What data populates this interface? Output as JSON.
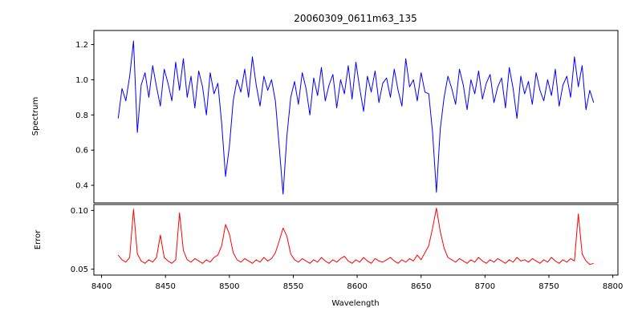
{
  "figure": {
    "title": "20060309_0611m63_135",
    "xlabel": "Wavelength",
    "top_ylabel": "Spectrum",
    "bottom_ylabel": "Error",
    "background_color": "#ffffff",
    "spine_color": "#000000",
    "spectrum_color": "#0000ff",
    "error_color": "#ff0000"
  },
  "chart_data": {
    "type": "line",
    "title": "20060309_0611m63_135",
    "xlabel": "Wavelength",
    "grid": false,
    "legend": "none",
    "x_start": 8413,
    "x_step": 3,
    "xlim": [
      8394,
      8804
    ],
    "x_ticks": [
      8400,
      8450,
      8500,
      8550,
      8600,
      8650,
      8700,
      8750,
      8800
    ],
    "x_tick_labels": [
      "8400",
      "8450",
      "8500",
      "8550",
      "8600",
      "8650",
      "8700",
      "8750",
      "8800"
    ],
    "panels": [
      {
        "ylabel": "Spectrum",
        "ylim": [
          0.3,
          1.28
        ],
        "y_ticks": [
          0.4,
          0.6,
          0.8,
          1.0,
          1.2
        ],
        "y_tick_labels": [
          "0.4",
          "0.6",
          "0.8",
          "1.0",
          "1.2"
        ],
        "notes": "noisy stellar spectrum near 1.0 with absorption lines at ~8498, ~8542, ~8662",
        "series": [
          {
            "name": "spectrum",
            "color": "#0000ff",
            "values": [
              0.78,
              0.95,
              0.88,
              1.02,
              1.22,
              0.7,
              0.97,
              1.04,
              0.9,
              1.08,
              0.96,
              0.85,
              1.06,
              0.98,
              0.88,
              1.1,
              0.94,
              1.12,
              0.9,
              1.02,
              0.84,
              1.05,
              0.96,
              0.8,
              1.04,
              0.92,
              0.98,
              0.75,
              0.45,
              0.62,
              0.88,
              1.0,
              0.93,
              1.06,
              0.9,
              1.13,
              0.97,
              0.85,
              1.02,
              0.94,
              1.0,
              0.88,
              0.62,
              0.35,
              0.68,
              0.9,
              0.99,
              0.86,
              1.04,
              0.95,
              0.8,
              1.01,
              0.91,
              1.07,
              0.88,
              0.97,
              1.03,
              0.84,
              1.0,
              0.92,
              1.08,
              0.89,
              1.1,
              0.95,
              0.82,
              1.02,
              0.93,
              1.05,
              0.87,
              0.98,
              1.01,
              0.9,
              1.06,
              0.94,
              0.85,
              1.12,
              0.96,
              1.0,
              0.88,
              1.04,
              0.93,
              0.92,
              0.7,
              0.36,
              0.72,
              0.9,
              1.02,
              0.95,
              0.86,
              1.06,
              0.97,
              0.83,
              1.0,
              0.92,
              1.05,
              0.89,
              0.98,
              1.03,
              0.87,
              0.96,
              1.01,
              0.84,
              1.07,
              0.95,
              0.78,
              1.02,
              0.92,
              0.99,
              0.86,
              1.04,
              0.94,
              0.88,
              1.0,
              0.91,
              1.06,
              0.85,
              0.97,
              1.02,
              0.9,
              1.13,
              0.96,
              1.08,
              0.83,
              0.94,
              0.87
            ]
          }
        ]
      },
      {
        "ylabel": "Error",
        "ylim": [
          0.045,
          0.105
        ],
        "y_ticks": [
          0.05,
          0.1
        ],
        "y_tick_labels": [
          "0.05",
          "0.10"
        ],
        "notes": "error spectrum ~0.057 with spikes at ~8425, ~8447, ~8461, ~8498, ~8542, ~8662, ~8773",
        "series": [
          {
            "name": "error",
            "color": "#ff0000",
            "values": [
              0.062,
              0.058,
              0.056,
              0.06,
              0.101,
              0.063,
              0.057,
              0.055,
              0.058,
              0.056,
              0.06,
              0.079,
              0.06,
              0.057,
              0.055,
              0.058,
              0.098,
              0.066,
              0.058,
              0.056,
              0.059,
              0.057,
              0.055,
              0.058,
              0.056,
              0.06,
              0.062,
              0.07,
              0.088,
              0.08,
              0.064,
              0.058,
              0.056,
              0.059,
              0.057,
              0.055,
              0.058,
              0.056,
              0.06,
              0.057,
              0.059,
              0.064,
              0.074,
              0.085,
              0.078,
              0.063,
              0.058,
              0.056,
              0.059,
              0.057,
              0.055,
              0.058,
              0.056,
              0.06,
              0.057,
              0.055,
              0.058,
              0.056,
              0.059,
              0.061,
              0.057,
              0.055,
              0.058,
              0.056,
              0.06,
              0.057,
              0.055,
              0.059,
              0.057,
              0.056,
              0.058,
              0.06,
              0.057,
              0.055,
              0.058,
              0.056,
              0.059,
              0.057,
              0.062,
              0.058,
              0.064,
              0.07,
              0.085,
              0.102,
              0.082,
              0.068,
              0.06,
              0.058,
              0.056,
              0.059,
              0.057,
              0.055,
              0.058,
              0.056,
              0.06,
              0.057,
              0.055,
              0.058,
              0.056,
              0.059,
              0.057,
              0.055,
              0.058,
              0.056,
              0.06,
              0.057,
              0.058,
              0.056,
              0.059,
              0.057,
              0.055,
              0.058,
              0.056,
              0.06,
              0.057,
              0.055,
              0.058,
              0.056,
              0.059,
              0.057,
              0.097,
              0.063,
              0.057,
              0.054,
              0.055
            ]
          }
        ]
      }
    ]
  }
}
